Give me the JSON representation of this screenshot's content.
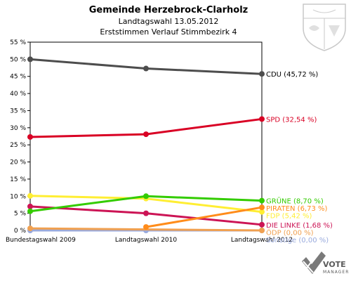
{
  "header": {
    "title": "Gemeinde Herzebrock-Clarholz",
    "subtitle1": "Landtagswahl 13.05.2012",
    "subtitle2": "Erststimmen Verlauf Stimmbezirk 4"
  },
  "logo": {
    "brand_main": "VOTE",
    "brand_sub": "MANAGER",
    "crest": "coat-of-arms"
  },
  "chart_data": {
    "type": "line",
    "categories": [
      "Bundestagswahl 2009",
      "Landtagswahl 2010",
      "Landtagswahl 2012"
    ],
    "ylim": [
      0,
      55
    ],
    "yticks": [
      0,
      5,
      10,
      15,
      20,
      25,
      30,
      35,
      40,
      45,
      50,
      55
    ],
    "ytick_labels": [
      "0 %",
      "5 %",
      "10 %",
      "15 %",
      "20 %",
      "25 %",
      "30 %",
      "35 %",
      "40 %",
      "45 %",
      "50 %",
      "55 %"
    ],
    "grid": false,
    "series": [
      {
        "name": "CDU",
        "label": "CDU (45,72 %)",
        "color": "#4d4d4d",
        "values": [
          50.0,
          47.3,
          45.72
        ]
      },
      {
        "name": "SPD",
        "label": "SPD (32,54 %)",
        "color": "#d90024",
        "values": [
          27.3,
          28.1,
          32.54
        ]
      },
      {
        "name": "GRÜNE",
        "label": "GRÜNE (8,70 %)",
        "color": "#33cc00",
        "values": [
          5.6,
          10.0,
          8.7
        ]
      },
      {
        "name": "PIRATEN",
        "label": "PIRATEN (6,73 %)",
        "color": "#ff8c1a",
        "values": [
          null,
          1.0,
          6.73
        ]
      },
      {
        "name": "FDP",
        "label": "FDP (5,42 %)",
        "color": "#ffee33",
        "values": [
          10.1,
          9.3,
          5.42
        ]
      },
      {
        "name": "DIE LINKE",
        "label": "DIE LINKE (1,68 %)",
        "color": "#cc1455",
        "values": [
          7.0,
          5.0,
          1.68
        ]
      },
      {
        "name": "ÖDP",
        "label": "ÖDP (0,00 %)",
        "color": "#f0a050",
        "values": [
          0.6,
          null,
          0.0
        ]
      },
      {
        "name": "Sonstige",
        "label": "Sonstige (0,00 %)",
        "color": "#99aadd",
        "values": [
          0.0,
          0.0,
          0.0
        ]
      }
    ]
  }
}
